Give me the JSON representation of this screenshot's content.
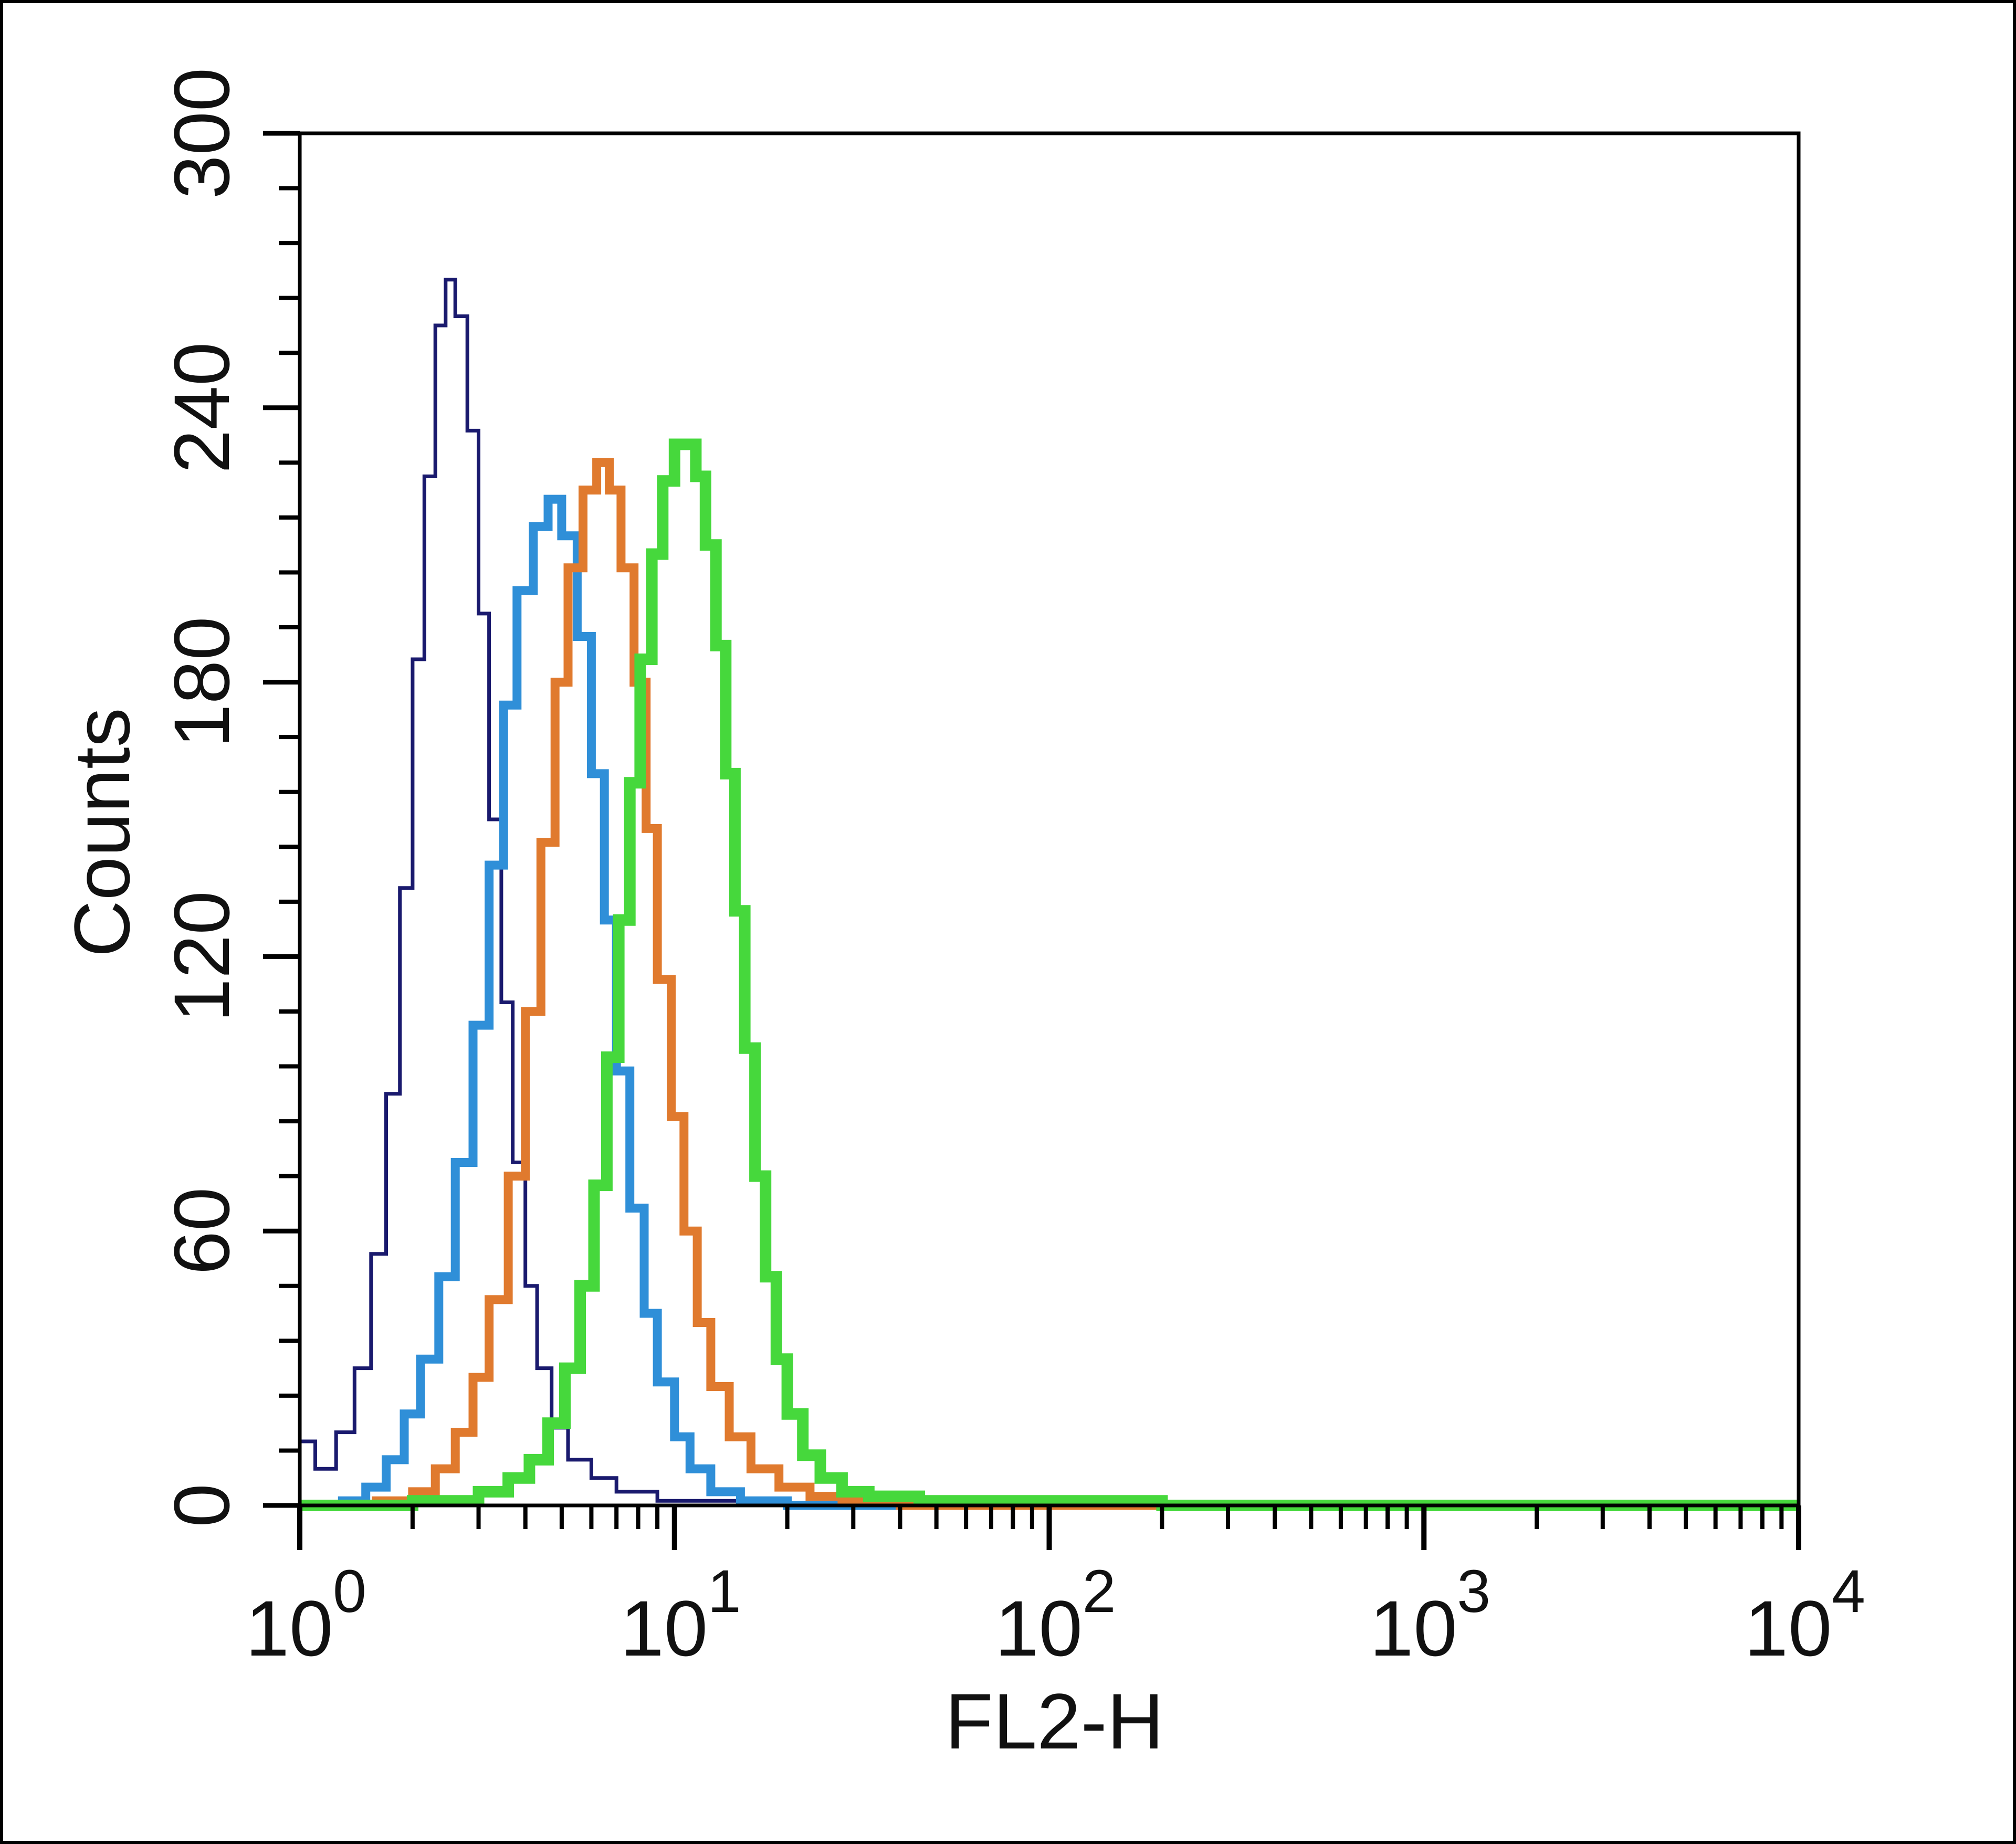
{
  "chart_data": {
    "type": "line",
    "title": "",
    "xlabel": "FL2-H",
    "ylabel": "Counts",
    "x_scale": "log",
    "xlim": [
      1,
      10000
    ],
    "ylim": [
      0,
      300
    ],
    "grid": false,
    "legend": "none",
    "x_ticks": [
      {
        "value": 1,
        "base": "10",
        "exp": "0"
      },
      {
        "value": 10,
        "base": "10",
        "exp": "1"
      },
      {
        "value": 100,
        "base": "10",
        "exp": "2"
      },
      {
        "value": 1000,
        "base": "10",
        "exp": "3"
      },
      {
        "value": 10000,
        "base": "10",
        "exp": "4"
      }
    ],
    "y_ticks": [
      {
        "value": 0,
        "label": "0"
      },
      {
        "value": 60,
        "label": "60"
      },
      {
        "value": 120,
        "label": "120"
      },
      {
        "value": 180,
        "label": "180"
      },
      {
        "value": 240,
        "label": "240"
      },
      {
        "value": 300,
        "label": "300"
      }
    ],
    "series": [
      {
        "color": "#1a1a6e",
        "stroke_weight": "thin",
        "points": [
          [
            1.0,
            14
          ],
          [
            1.1,
            8
          ],
          [
            1.25,
            16
          ],
          [
            1.4,
            30
          ],
          [
            1.55,
            55
          ],
          [
            1.7,
            90
          ],
          [
            1.85,
            135
          ],
          [
            2.0,
            185
          ],
          [
            2.15,
            225
          ],
          [
            2.3,
            258
          ],
          [
            2.45,
            268
          ],
          [
            2.6,
            260
          ],
          [
            2.8,
            235
          ],
          [
            3.0,
            195
          ],
          [
            3.2,
            150
          ],
          [
            3.45,
            110
          ],
          [
            3.7,
            75
          ],
          [
            4.0,
            48
          ],
          [
            4.3,
            30
          ],
          [
            4.7,
            17
          ],
          [
            5.2,
            10
          ],
          [
            6.0,
            6
          ],
          [
            7.0,
            3
          ],
          [
            9.0,
            1
          ],
          [
            15,
            0
          ],
          [
            10000,
            0
          ]
        ]
      },
      {
        "color": "#2f8fd8",
        "stroke_weight": "medium",
        "points": [
          [
            1.0,
            0
          ],
          [
            1.3,
            1
          ],
          [
            1.5,
            4
          ],
          [
            1.7,
            10
          ],
          [
            1.9,
            20
          ],
          [
            2.1,
            32
          ],
          [
            2.35,
            50
          ],
          [
            2.6,
            75
          ],
          [
            2.9,
            105
          ],
          [
            3.2,
            140
          ],
          [
            3.5,
            175
          ],
          [
            3.8,
            200
          ],
          [
            4.2,
            214
          ],
          [
            4.6,
            220
          ],
          [
            5.0,
            212
          ],
          [
            5.5,
            190
          ],
          [
            6.0,
            160
          ],
          [
            6.5,
            128
          ],
          [
            7.0,
            95
          ],
          [
            7.6,
            65
          ],
          [
            8.3,
            42
          ],
          [
            9.0,
            27
          ],
          [
            10.0,
            15
          ],
          [
            11.0,
            8
          ],
          [
            12.5,
            3
          ],
          [
            15,
            1
          ],
          [
            20,
            0
          ],
          [
            10000,
            0
          ]
        ]
      },
      {
        "color": "#e07a2e",
        "stroke_weight": "medium",
        "points": [
          [
            1.0,
            0
          ],
          [
            1.6,
            1
          ],
          [
            2.0,
            3
          ],
          [
            2.3,
            8
          ],
          [
            2.6,
            16
          ],
          [
            2.9,
            28
          ],
          [
            3.2,
            45
          ],
          [
            3.6,
            72
          ],
          [
            4.0,
            108
          ],
          [
            4.4,
            145
          ],
          [
            4.8,
            180
          ],
          [
            5.2,
            205
          ],
          [
            5.7,
            222
          ],
          [
            6.2,
            228
          ],
          [
            6.7,
            222
          ],
          [
            7.2,
            205
          ],
          [
            7.8,
            180
          ],
          [
            8.4,
            148
          ],
          [
            9.0,
            115
          ],
          [
            9.8,
            85
          ],
          [
            10.6,
            60
          ],
          [
            11.5,
            40
          ],
          [
            12.5,
            26
          ],
          [
            14,
            15
          ],
          [
            16,
            8
          ],
          [
            19,
            4
          ],
          [
            23,
            2
          ],
          [
            28,
            1
          ],
          [
            40,
            0
          ],
          [
            10000,
            0
          ]
        ]
      },
      {
        "color": "#46d83c",
        "stroke_weight": "thick",
        "points": [
          [
            1.0,
            0
          ],
          [
            2.0,
            1
          ],
          [
            3.0,
            3
          ],
          [
            3.6,
            6
          ],
          [
            4.1,
            10
          ],
          [
            4.6,
            18
          ],
          [
            5.1,
            30
          ],
          [
            5.6,
            48
          ],
          [
            6.1,
            70
          ],
          [
            6.6,
            98
          ],
          [
            7.1,
            128
          ],
          [
            7.6,
            158
          ],
          [
            8.1,
            185
          ],
          [
            8.7,
            208
          ],
          [
            9.3,
            224
          ],
          [
            10.0,
            232
          ],
          [
            10.7,
            232
          ],
          [
            11.4,
            225
          ],
          [
            12.1,
            210
          ],
          [
            12.9,
            188
          ],
          [
            13.7,
            160
          ],
          [
            14.5,
            130
          ],
          [
            15.4,
            100
          ],
          [
            16.4,
            72
          ],
          [
            17.5,
            50
          ],
          [
            18.7,
            32
          ],
          [
            20,
            20
          ],
          [
            22,
            11
          ],
          [
            24.5,
            6
          ],
          [
            28,
            3
          ],
          [
            33,
            2
          ],
          [
            45,
            1
          ],
          [
            70,
            1
          ],
          [
            200,
            0
          ],
          [
            10000,
            0
          ]
        ]
      }
    ]
  }
}
